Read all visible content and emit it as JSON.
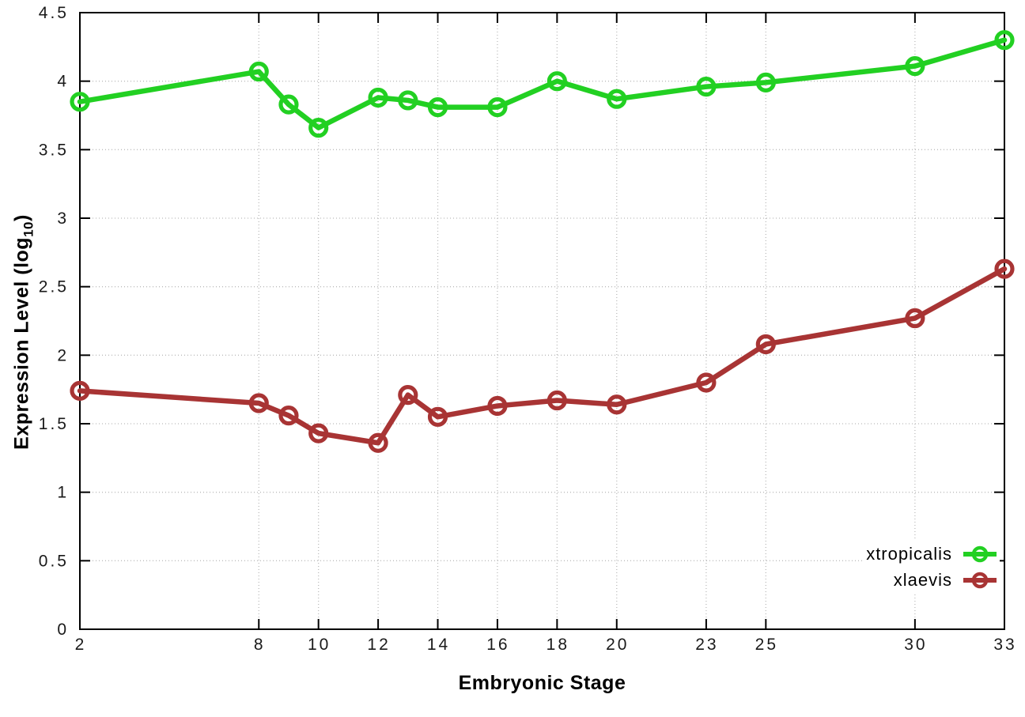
{
  "chart_data": {
    "type": "line",
    "title": "",
    "xlabel": "Embryonic Stage",
    "ylabel_main": "Expression Level (log",
    "ylabel_sub": "10",
    "ylabel_suffix": ")",
    "x": [
      2,
      8,
      9,
      10,
      12,
      13,
      14,
      16,
      18,
      20,
      23,
      25,
      30,
      33
    ],
    "series": [
      {
        "name": "xtropicalis",
        "color": "#22d022",
        "values": [
          3.85,
          4.07,
          3.83,
          3.66,
          3.88,
          3.86,
          3.81,
          3.81,
          4.0,
          3.87,
          3.96,
          3.99,
          4.11,
          4.3
        ]
      },
      {
        "name": "xlaevis",
        "color": "#a83434",
        "values": [
          1.74,
          1.65,
          1.56,
          1.43,
          1.36,
          1.71,
          1.55,
          1.63,
          1.67,
          1.64,
          1.8,
          2.08,
          2.27,
          2.63
        ]
      }
    ],
    "xlim": [
      2,
      33
    ],
    "ylim": [
      0,
      4.5
    ],
    "xticks": [
      2,
      8,
      10,
      12,
      14,
      16,
      18,
      20,
      23,
      25,
      30,
      33
    ],
    "yticks": [
      0,
      0.5,
      1,
      1.5,
      2,
      2.5,
      3,
      3.5,
      4,
      4.5
    ],
    "ytick_labels": [
      "0",
      "0.5",
      "1",
      "1.5",
      "2",
      "2.5",
      "3",
      "3.5",
      "4",
      "4.5"
    ],
    "grid": true,
    "legend_position": "bottom-right"
  },
  "colors": {
    "grid": "#bbbbbb",
    "axis": "#000000",
    "tick_text": "#1a1a1a"
  }
}
